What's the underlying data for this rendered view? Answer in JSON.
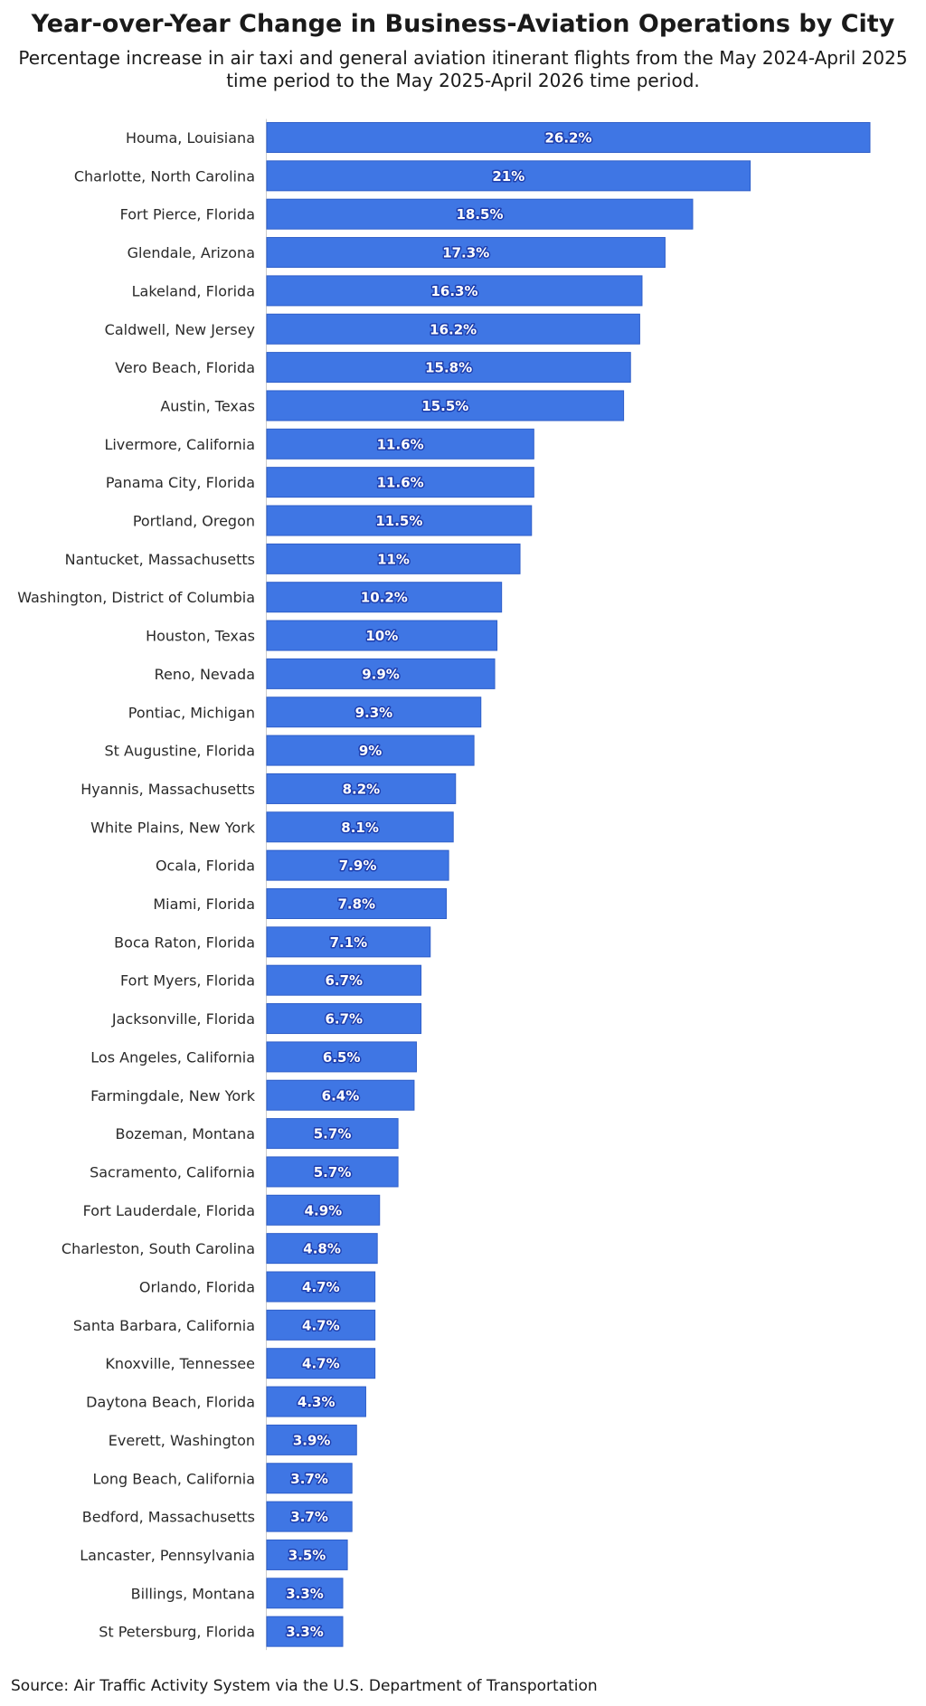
{
  "header": {
    "title": "Year-over-Year Change in Business-Aviation Operations by City",
    "subtitle": "Percentage increase in air taxi and general aviation itinerant flights from the May 2024-April 2025 time period to the May 2025-April 2026 time period."
  },
  "footer": {
    "source": "Source: Air Traffic Activity System via the U.S. Department of Transportation"
  },
  "colors": {
    "bar": "#3f76e4",
    "bar_edge": "#2f5fc9",
    "axis": "#cccccc"
  },
  "chart_data": {
    "type": "bar",
    "orientation": "horizontal",
    "title": "Year-over-Year Change in Business-Aviation Operations by City",
    "subtitle": "Percentage increase in air taxi and general aviation itinerant flights from the May 2024-April 2025 time period to the May 2025-April 2026 time period.",
    "xlabel": "",
    "ylabel": "",
    "xlim": [
      0,
      26.2
    ],
    "grid": false,
    "categories": [
      "Houma, Louisiana",
      "Charlotte, North Carolina",
      "Fort Pierce, Florida",
      "Glendale, Arizona",
      "Lakeland, Florida",
      "Caldwell, New Jersey",
      "Vero Beach, Florida",
      "Austin, Texas",
      "Livermore, California",
      "Panama City, Florida",
      "Portland, Oregon",
      "Nantucket, Massachusetts",
      "Washington, District of Columbia",
      "Houston, Texas",
      "Reno, Nevada",
      "Pontiac, Michigan",
      "St Augustine, Florida",
      "Hyannis, Massachusetts",
      "White Plains, New York",
      "Ocala, Florida",
      "Miami, Florida",
      "Boca Raton, Florida",
      "Fort Myers, Florida",
      "Jacksonville, Florida",
      "Los Angeles, California",
      "Farmingdale, New York",
      "Bozeman, Montana",
      "Sacramento, California",
      "Fort Lauderdale, Florida",
      "Charleston, South Carolina",
      "Orlando, Florida",
      "Santa Barbara, California",
      "Knoxville, Tennessee",
      "Daytona Beach, Florida",
      "Everett, Washington",
      "Long Beach, California",
      "Bedford, Massachusetts",
      "Lancaster, Pennsylvania",
      "Billings, Montana",
      "St Petersburg, Florida"
    ],
    "values": [
      26.2,
      21,
      18.5,
      17.3,
      16.3,
      16.2,
      15.8,
      15.5,
      11.6,
      11.6,
      11.5,
      11,
      10.2,
      10,
      9.9,
      9.3,
      9,
      8.2,
      8.1,
      7.9,
      7.8,
      7.1,
      6.7,
      6.7,
      6.5,
      6.4,
      5.7,
      5.7,
      4.9,
      4.8,
      4.7,
      4.7,
      4.7,
      4.3,
      3.9,
      3.7,
      3.7,
      3.5,
      3.3,
      3.3
    ],
    "value_labels": [
      "26.2%",
      "21%",
      "18.5%",
      "17.3%",
      "16.3%",
      "16.2%",
      "15.8%",
      "15.5%",
      "11.6%",
      "11.6%",
      "11.5%",
      "11%",
      "10.2%",
      "10%",
      "9.9%",
      "9.3%",
      "9%",
      "8.2%",
      "8.1%",
      "7.9%",
      "7.8%",
      "7.1%",
      "6.7%",
      "6.7%",
      "6.5%",
      "6.4%",
      "5.7%",
      "5.7%",
      "4.9%",
      "4.8%",
      "4.7%",
      "4.7%",
      "4.7%",
      "4.3%",
      "3.9%",
      "3.7%",
      "3.7%",
      "3.5%",
      "3.3%",
      "3.3%"
    ],
    "unit": "%"
  }
}
